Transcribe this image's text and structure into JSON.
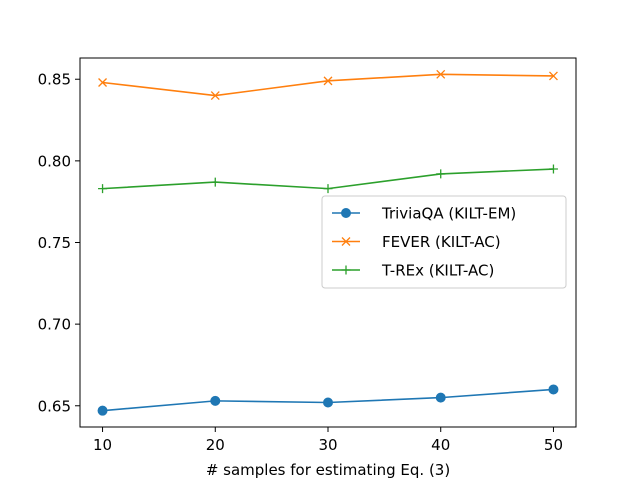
{
  "chart_data": {
    "type": "line",
    "title": "",
    "xlabel": "# samples for estimating Eq. (3)",
    "ylabel": "",
    "x": [
      10,
      20,
      30,
      40,
      50
    ],
    "xlim": [
      8,
      52
    ],
    "ylim": [
      0.637,
      0.863
    ],
    "xticks": [
      10,
      20,
      30,
      40,
      50
    ],
    "yticks": [
      0.65,
      0.7,
      0.75,
      0.8,
      0.85
    ],
    "ytick_labels": [
      "0.65",
      "0.70",
      "0.75",
      "0.80",
      "0.85"
    ],
    "grid": false,
    "legend_position": "center-right",
    "series": [
      {
        "name": "TriviaQA (KILT-EM)",
        "color": "#1f77b4",
        "marker": "circle",
        "values": [
          0.647,
          0.653,
          0.652,
          0.655,
          0.66
        ]
      },
      {
        "name": "FEVER (KILT-AC)",
        "color": "#ff7f0e",
        "marker": "x",
        "values": [
          0.848,
          0.84,
          0.849,
          0.853,
          0.852
        ]
      },
      {
        "name": "T-REx (KILT-AC)",
        "color": "#2ca02c",
        "marker": "plus",
        "values": [
          0.783,
          0.787,
          0.783,
          0.792,
          0.795
        ]
      }
    ]
  }
}
